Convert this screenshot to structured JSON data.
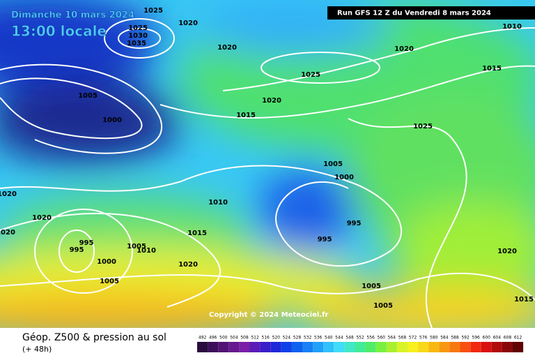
{
  "header": {
    "date": "Dimanche 10 mars 2024",
    "time": "13:00 locale",
    "run": "Run GFS 12 Z du Vendredi 8 mars 2024",
    "copyright": "Copyright © 2024 Meteociel.fr"
  },
  "footer": {
    "title": "Géop. Z500 & pression au sol",
    "lead": "(+ 48h)"
  },
  "isobar_labels": [
    "1025",
    "1020",
    "1025",
    "1030",
    "1035",
    "1020",
    "1020",
    "1010",
    "1015",
    "1025",
    "1005",
    "1020",
    "1015",
    "1000",
    "1025",
    "1005",
    "1000",
    "1010",
    "1020",
    "995",
    "995",
    "1015",
    "995",
    "995",
    "1005",
    "1010",
    "1000",
    "1020",
    "1005",
    "1005",
    "1005",
    "1015",
    "1020",
    "1020",
    "1020"
  ],
  "legend": [
    {
      "label": 492,
      "color": "#2b0b3f"
    },
    {
      "label": 496,
      "color": "#3d0f5a"
    },
    {
      "label": 500,
      "color": "#521474"
    },
    {
      "label": 504,
      "color": "#66198e"
    },
    {
      "label": 508,
      "color": "#7a1ea8"
    },
    {
      "label": 512,
      "color": "#5a1cb8"
    },
    {
      "label": 516,
      "color": "#3a1ec8"
    },
    {
      "label": 520,
      "color": "#1e28d8"
    },
    {
      "label": 524,
      "color": "#1040e8"
    },
    {
      "label": 528,
      "color": "#1060f0"
    },
    {
      "label": 532,
      "color": "#1880f4"
    },
    {
      "label": 536,
      "color": "#20a0f8"
    },
    {
      "label": 540,
      "color": "#30c0fa"
    },
    {
      "label": 544,
      "color": "#40dcf8"
    },
    {
      "label": 548,
      "color": "#40e8c8"
    },
    {
      "label": 552,
      "color": "#40ec98"
    },
    {
      "label": 556,
      "color": "#50ec68"
    },
    {
      "label": 560,
      "color": "#78f040"
    },
    {
      "label": 564,
      "color": "#a8f030"
    },
    {
      "label": 568,
      "color": "#d8f428"
    },
    {
      "label": 572,
      "color": "#f8f020"
    },
    {
      "label": 576,
      "color": "#f8d818"
    },
    {
      "label": 580,
      "color": "#f8b810"
    },
    {
      "label": 584,
      "color": "#f89810"
    },
    {
      "label": 588,
      "color": "#f87810"
    },
    {
      "label": 592,
      "color": "#f85010"
    },
    {
      "label": 596,
      "color": "#f02810"
    },
    {
      "label": 600,
      "color": "#d81010"
    },
    {
      "label": 604,
      "color": "#b00c0c"
    },
    {
      "label": 608,
      "color": "#880808"
    },
    {
      "label": 612,
      "color": "#600404"
    }
  ]
}
